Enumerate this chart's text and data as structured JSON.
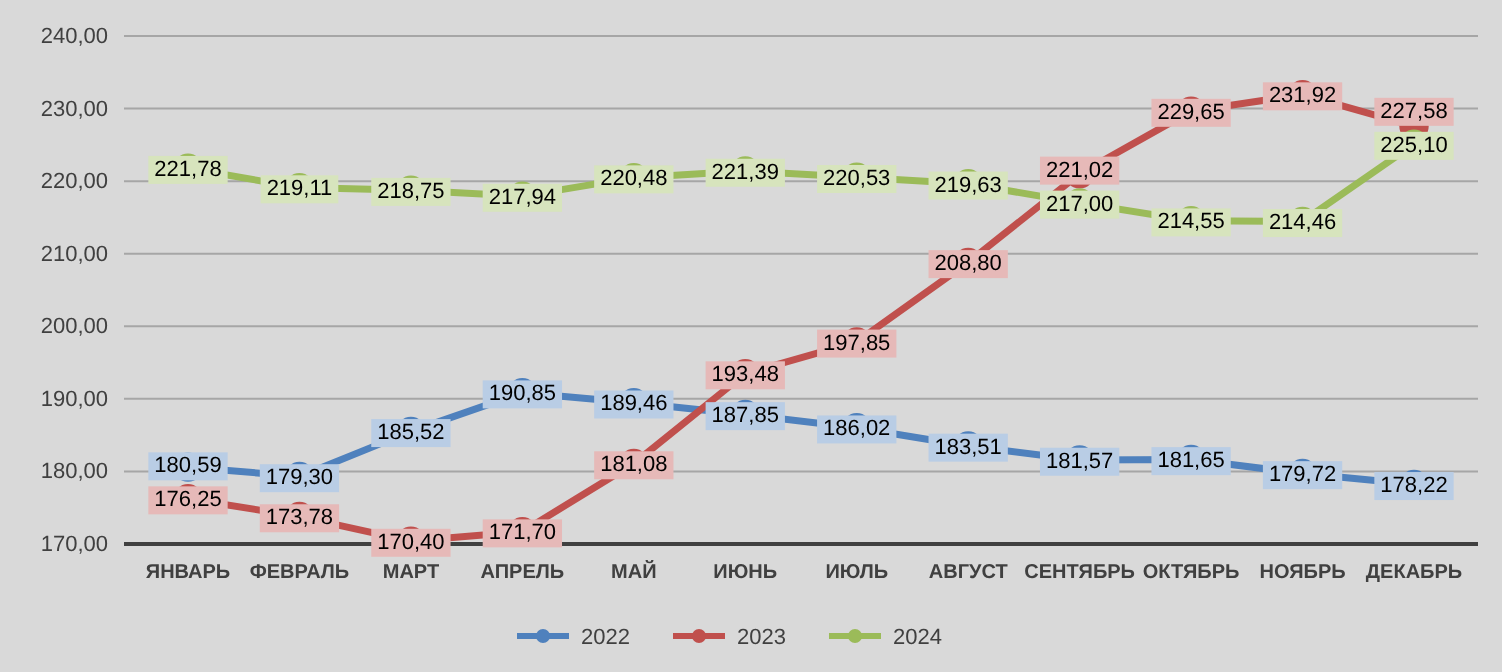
{
  "chart_data": {
    "type": "line",
    "categories": [
      "ЯНВАРЬ",
      "ФЕВРАЛЬ",
      "МАРТ",
      "АПРЕЛЬ",
      "МАЙ",
      "ИЮНЬ",
      "ИЮЛЬ",
      "АВГУСТ",
      "СЕНТЯБРЬ",
      "ОКТЯБРЬ",
      "НОЯБРЬ",
      "ДЕКАБРЬ"
    ],
    "series": [
      {
        "name": "2022",
        "color": "#4f81bd",
        "values": [
          180.59,
          179.3,
          185.52,
          190.85,
          189.46,
          187.85,
          186.02,
          183.51,
          181.57,
          181.65,
          179.72,
          178.22
        ],
        "value_labels": [
          "180,59",
          "179,30",
          "185,52",
          "190,85",
          "189,46",
          "187,85",
          "186,02",
          "183,51",
          "181,57",
          "181,65",
          "179,72",
          "178,22"
        ]
      },
      {
        "name": "2023",
        "color": "#c0504d",
        "values": [
          176.25,
          173.78,
          170.4,
          171.7,
          181.08,
          193.48,
          197.85,
          208.8,
          221.02,
          229.65,
          231.92,
          227.58
        ],
        "value_labels": [
          "176,25",
          "173,78",
          "170,40",
          "171,70",
          "181,08",
          "193,48",
          "197,85",
          "208,80",
          "221,02",
          "229,65",
          "231,92",
          "227,58"
        ]
      },
      {
        "name": "2024",
        "color": "#9bbb59",
        "values": [
          221.78,
          219.11,
          218.75,
          217.94,
          220.48,
          221.39,
          220.53,
          219.63,
          217.0,
          214.55,
          214.46,
          225.1
        ],
        "value_labels": [
          "221,78",
          "219,11",
          "218,75",
          "217,94",
          "220,48",
          "221,39",
          "220,53",
          "219,63",
          "217,00",
          "214,55",
          "214,46",
          "225,10"
        ]
      }
    ],
    "ylim": [
      170,
      240
    ],
    "yticks": [
      {
        "value": 170,
        "label": "170,00"
      },
      {
        "value": 180,
        "label": "180,00"
      },
      {
        "value": 190,
        "label": "190,00"
      },
      {
        "value": 200,
        "label": "200,00"
      },
      {
        "value": 210,
        "label": "210,00"
      },
      {
        "value": 220,
        "label": "220,00"
      },
      {
        "value": 230,
        "label": "230,00"
      },
      {
        "value": 240,
        "label": "240,00"
      }
    ],
    "grid": "y",
    "legend": "bottom",
    "marker": "circle",
    "line_style": "solid"
  }
}
